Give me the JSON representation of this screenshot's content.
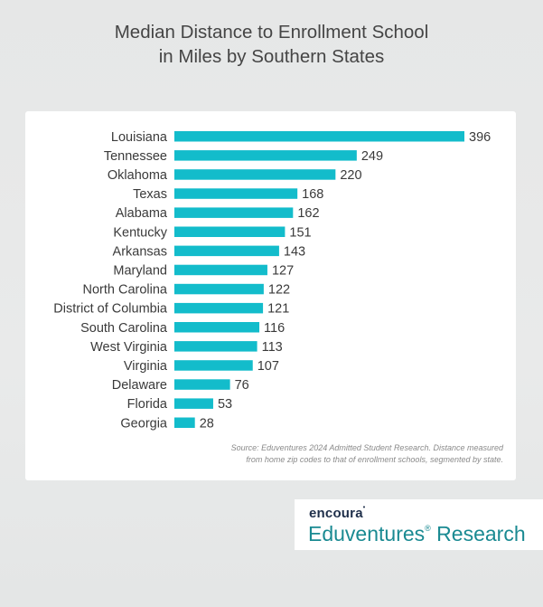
{
  "title_line1": "Median Distance to Enrollment School",
  "title_line2": "in Miles by Southern States",
  "source_line1": "Source: Eduventures 2024 Admitted Student Research. Distance measured",
  "source_line2": "from home zip codes to that of enrollment schools, segmented by state.",
  "brand": {
    "top": "encoura",
    "bottom_main": "Eduventures",
    "bottom_mark": "®",
    "bottom_rest": " Research"
  },
  "colors": {
    "bar": "#13bccb"
  },
  "chart_data": {
    "type": "bar",
    "orientation": "horizontal",
    "title": "Median Distance to Enrollment School in Miles by Southern States",
    "categories": [
      "Louisiana",
      "Tennessee",
      "Oklahoma",
      "Texas",
      "Alabama",
      "Kentucky",
      "Arkansas",
      "Maryland",
      "North Carolina",
      "District of Columbia",
      "South Carolina",
      "West Virginia",
      "Virginia",
      "Delaware",
      "Florida",
      "Georgia"
    ],
    "values": [
      396,
      249,
      220,
      168,
      162,
      151,
      143,
      127,
      122,
      121,
      116,
      113,
      107,
      76,
      53,
      28
    ],
    "xlim": [
      0,
      396
    ],
    "grid": false,
    "data_labels": true
  }
}
